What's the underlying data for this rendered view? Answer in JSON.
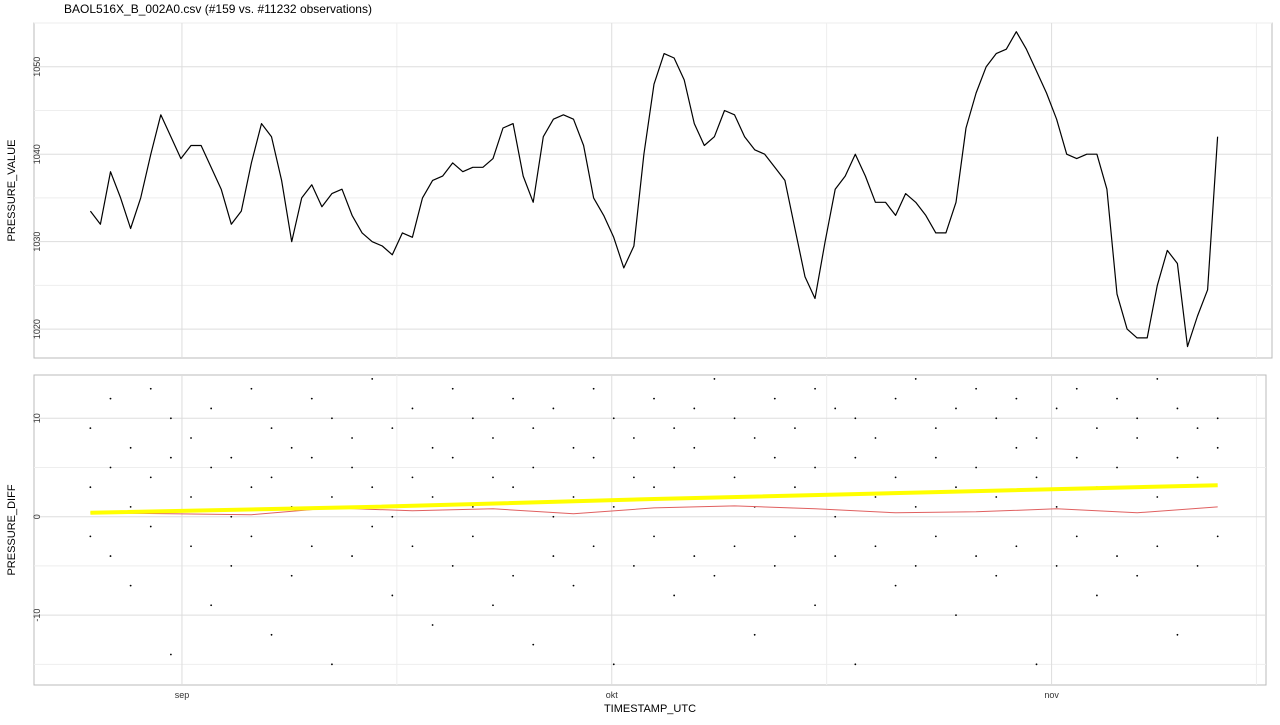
{
  "title": "BAOL516X_B_002A0.csv (#159 vs. #11232 observations)",
  "chart_data": [
    {
      "type": "line",
      "ylabel": "PRESSURE_VALUE",
      "xlim": [
        -5.6,
        117.4
      ],
      "xticks": [
        9.1,
        51.8,
        95.5
      ],
      "ylim": [
        1016.7,
        1055
      ],
      "yticks": [
        1020,
        1030,
        1040,
        1050
      ],
      "grid": true,
      "series": [
        {
          "color": "#000000",
          "values": [
            1033.5,
            1032,
            1038,
            1035,
            1031.5,
            1035,
            1040,
            1044.5,
            1042,
            1039.5,
            1041,
            1041,
            1038.5,
            1036,
            1032,
            1033.5,
            1039,
            1043.5,
            1042,
            1037,
            1030,
            1035,
            1036.5,
            1034,
            1035.5,
            1036,
            1033,
            1031,
            1030,
            1029.5,
            1028.5,
            1031,
            1030.5,
            1035,
            1037,
            1037.5,
            1039,
            1038,
            1038.5,
            1038.5,
            1039.5,
            1043,
            1043.5,
            1037.5,
            1034.5,
            1042,
            1044,
            1044.5,
            1044,
            1041,
            1035,
            1033,
            1030.5,
            1027,
            1029.5,
            1040,
            1048,
            1051.5,
            1051,
            1048.5,
            1043.5,
            1041,
            1042,
            1045,
            1044.5,
            1042,
            1040.5,
            1040,
            1038.5,
            1037,
            1031.5,
            1026,
            1023.5,
            1030,
            1036,
            1037.5,
            1040,
            1037.5,
            1034.5,
            1034.5,
            1033,
            1035.5,
            1034.5,
            1033,
            1031,
            1031,
            1034.5,
            1043,
            1047,
            1050,
            1051.5,
            1052,
            1054,
            1052,
            1049.5,
            1047,
            1044,
            1040,
            1039.5,
            1040,
            1040,
            1036,
            1024,
            1020,
            1019,
            1019,
            1025,
            1029,
            1027.5,
            1018,
            1021.5,
            1024.5,
            1042
          ]
        }
      ]
    },
    {
      "type": "scatter",
      "ylabel": "PRESSURE_DIFF",
      "xlabel": "TIMESTAMP_UTC",
      "xlim": [
        -5.6,
        116.8
      ],
      "xticks": [
        {
          "value": 9.1,
          "label": "sep"
        },
        {
          "value": 51.8,
          "label": "okt"
        },
        {
          "value": 95.5,
          "label": "nov"
        }
      ],
      "ylim": [
        -17.1,
        14.4
      ],
      "yticks": [
        -10,
        0,
        10
      ],
      "grid": true,
      "series": [
        {
          "type": "scatter",
          "color": "#000000",
          "x": [
            0,
            0,
            0,
            2,
            2,
            2,
            4,
            4,
            4,
            6,
            6,
            6,
            8,
            8,
            8,
            10,
            10,
            10,
            12,
            12,
            12,
            14,
            14,
            14,
            16,
            16,
            16,
            18,
            18,
            18,
            20,
            20,
            20,
            22,
            22,
            22,
            24,
            24,
            24,
            26,
            26,
            26,
            28,
            28,
            28,
            30,
            30,
            30,
            32,
            32,
            32,
            34,
            34,
            34,
            36,
            36,
            36,
            38,
            38,
            38,
            40,
            40,
            40,
            42,
            42,
            42,
            44,
            44,
            44,
            46,
            46,
            46,
            48,
            48,
            48,
            50,
            50,
            50,
            52,
            52,
            52,
            54,
            54,
            54,
            56,
            56,
            56,
            58,
            58,
            58,
            60,
            60,
            60,
            62,
            62,
            62,
            64,
            64,
            64,
            66,
            66,
            66,
            68,
            68,
            68,
            70,
            70,
            70,
            72,
            72,
            72,
            74,
            74,
            74,
            76,
            76,
            76,
            78,
            78,
            78,
            80,
            80,
            80,
            82,
            82,
            82,
            84,
            84,
            84,
            86,
            86,
            86,
            88,
            88,
            88,
            90,
            90,
            90,
            92,
            92,
            92,
            94,
            94,
            94,
            96,
            96,
            96,
            98,
            98,
            98,
            100,
            100,
            100,
            102,
            102,
            102,
            104,
            104,
            104,
            106,
            106,
            106,
            108,
            108,
            108,
            110,
            110,
            110,
            112,
            112,
            112
          ],
          "values": [
            9,
            3,
            -2,
            12,
            5,
            -4,
            7,
            1,
            -7,
            13,
            4,
            -1,
            10,
            6,
            -14,
            8,
            2,
            -3,
            11,
            5,
            -9,
            6,
            0,
            -5,
            13,
            3,
            -2,
            9,
            4,
            -12,
            7,
            1,
            -6,
            12,
            6,
            -3,
            10,
            2,
            -15,
            8,
            5,
            -4,
            14,
            3,
            -1,
            9,
            0,
            -8,
            11,
            4,
            -3,
            7,
            2,
            -11,
            13,
            6,
            -5,
            10,
            1,
            -2,
            8,
            4,
            -9,
            12,
            3,
            -6,
            9,
            5,
            -13,
            11,
            0,
            -4,
            7,
            2,
            -7,
            13,
            6,
            -3,
            10,
            1,
            -15,
            8,
            4,
            -5,
            12,
            3,
            -2,
            9,
            5,
            -8,
            11,
            7,
            -4,
            14,
            2,
            -6,
            10,
            4,
            -3,
            8,
            1,
            -12,
            12,
            6,
            -5,
            9,
            3,
            -2,
            13,
            5,
            -9,
            11,
            0,
            -4,
            10,
            6,
            -15,
            8,
            2,
            -3,
            12,
            4,
            -7,
            14,
            1,
            -5,
            9,
            6,
            -2,
            11,
            3,
            -10,
            13,
            5,
            -4,
            10,
            2,
            -6,
            12,
            7,
            -3,
            8,
            4,
            -15,
            11,
            1,
            -5,
            13,
            6,
            -2,
            9,
            3,
            -8,
            12,
            5,
            -4,
            10,
            8,
            -6,
            14,
            2,
            -3,
            11,
            6,
            -12,
            9,
            4,
            -5,
            10,
            7,
            -2
          ]
        },
        {
          "type": "line",
          "color": "#e06060",
          "width": 1,
          "x": [
            0,
            8,
            16,
            24,
            32,
            40,
            48,
            56,
            64,
            72,
            80,
            88,
            96,
            104,
            112
          ],
          "values": [
            0.4,
            0.3,
            0.2,
            0.9,
            0.6,
            0.8,
            0.3,
            0.9,
            1.1,
            0.8,
            0.4,
            0.5,
            0.8,
            0.4,
            1.0
          ]
        },
        {
          "type": "line",
          "color": "#ffff00",
          "width": 4,
          "x": [
            0,
            28,
            56,
            84,
            112
          ],
          "values": [
            0.4,
            1.0,
            1.8,
            2.5,
            3.2
          ]
        }
      ]
    }
  ]
}
